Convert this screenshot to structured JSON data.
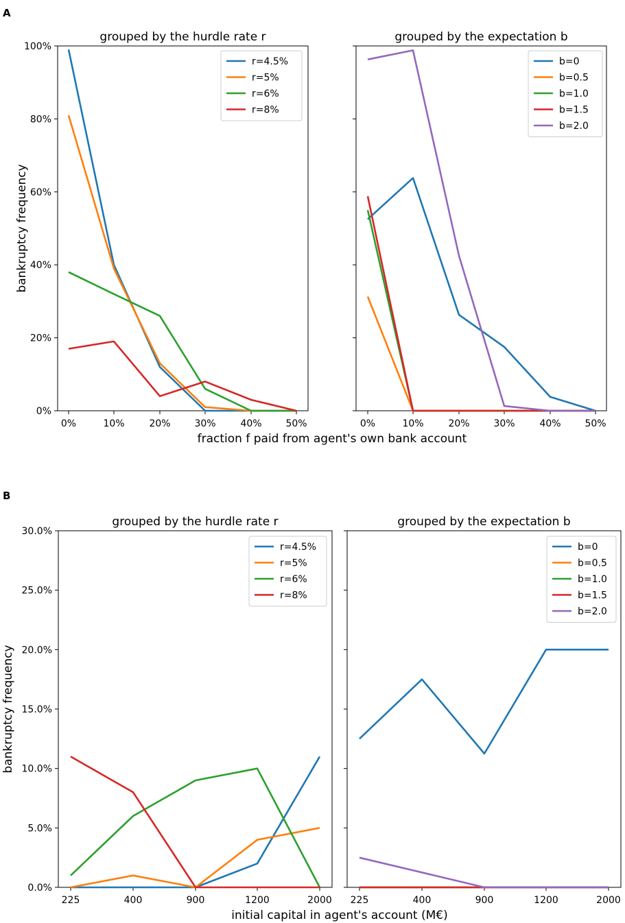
{
  "figure": {
    "panel_a_label": "A",
    "panel_b_label": "B"
  },
  "colors": {
    "blue": "#1f77b4",
    "orange": "#ff7f0e",
    "green": "#2ca02c",
    "red": "#d62728",
    "purple": "#9467bd"
  },
  "chart_data": [
    {
      "id": "A-left",
      "type": "line",
      "title": "grouped by the hurdle rate r",
      "xlabel": "",
      "ylabel": "bankruptcy frequency",
      "categories": [
        "0%",
        "10%",
        "20%",
        "30%",
        "40%",
        "50%"
      ],
      "x": [
        0,
        10,
        20,
        30,
        40,
        50
      ],
      "ylim": [
        0,
        100
      ],
      "yticks": [
        0,
        20,
        40,
        60,
        80,
        100
      ],
      "ytick_labels": [
        "0%",
        "20%",
        "40%",
        "60%",
        "80%",
        "100%"
      ],
      "legend_location": "top-right",
      "series": [
        {
          "name": "r=4.5%",
          "color": "#1f77b4",
          "values": [
            99,
            40,
            12,
            0,
            0,
            0
          ]
        },
        {
          "name": "r=5%",
          "color": "#ff7f0e",
          "values": [
            81,
            39,
            13,
            1,
            0,
            0
          ]
        },
        {
          "name": "r=6%",
          "color": "#2ca02c",
          "values": [
            38,
            32,
            26,
            6,
            0,
            0
          ]
        },
        {
          "name": "r=8%",
          "color": "#d62728",
          "values": [
            17,
            19,
            4,
            8,
            3,
            0
          ]
        }
      ]
    },
    {
      "id": "A-right",
      "type": "line",
      "title": "grouped by the expectation b",
      "xlabel": "",
      "ylabel": "",
      "categories": [
        "0%",
        "10%",
        "20%",
        "30%",
        "40%",
        "50%"
      ],
      "x": [
        0,
        10,
        20,
        30,
        40,
        50
      ],
      "ylim": [
        0,
        100
      ],
      "yticks": [
        0,
        20,
        40,
        60,
        80,
        100
      ],
      "ytick_labels": [
        "",
        "",
        "",
        "",
        "",
        ""
      ],
      "legend_location": "top-right",
      "series": [
        {
          "name": "b=0",
          "color": "#1f77b4",
          "values": [
            52.5,
            63.8,
            26.3,
            17.5,
            3.8,
            0
          ]
        },
        {
          "name": "b=0.5",
          "color": "#ff7f0e",
          "values": [
            31.3,
            0,
            0,
            0,
            0,
            0
          ]
        },
        {
          "name": "b=1.0",
          "color": "#2ca02c",
          "values": [
            55,
            0,
            0,
            0,
            0,
            0
          ]
        },
        {
          "name": "b=1.5",
          "color": "#d62728",
          "values": [
            58.8,
            0,
            0,
            0,
            0,
            0
          ]
        },
        {
          "name": "b=2.0",
          "color": "#9467bd",
          "values": [
            96.3,
            98.8,
            42.5,
            1.3,
            0,
            0
          ]
        }
      ]
    },
    {
      "id": "B-left",
      "type": "line",
      "title": "grouped by the hurdle rate r",
      "xlabel": "",
      "ylabel": "bankruptcy frequency",
      "categories": [
        "225",
        "400",
        "900",
        "1200",
        "2000"
      ],
      "x": [
        225,
        400,
        900,
        1200,
        2000
      ],
      "ylim": [
        0,
        30
      ],
      "yticks": [
        0,
        5,
        10,
        15,
        20,
        25,
        30
      ],
      "ytick_labels": [
        "0.0%",
        "5.0%",
        "10.0%",
        "15.0%",
        "20.0%",
        "25.0%",
        "30.0%"
      ],
      "legend_location": "top-right",
      "series": [
        {
          "name": "r=4.5%",
          "color": "#1f77b4",
          "values": [
            0,
            0,
            0,
            2,
            11
          ]
        },
        {
          "name": "r=5%",
          "color": "#ff7f0e",
          "values": [
            0,
            1,
            0,
            4,
            5
          ]
        },
        {
          "name": "r=6%",
          "color": "#2ca02c",
          "values": [
            1,
            6,
            9,
            10,
            0
          ]
        },
        {
          "name": "r=8%",
          "color": "#d62728",
          "values": [
            11,
            8,
            0,
            0,
            0
          ]
        }
      ]
    },
    {
      "id": "B-right",
      "type": "line",
      "title": "grouped by the expectation b",
      "xlabel": "",
      "ylabel": "",
      "categories": [
        "225",
        "400",
        "900",
        "1200",
        "2000"
      ],
      "x": [
        225,
        400,
        900,
        1200,
        2000
      ],
      "ylim": [
        0,
        30
      ],
      "yticks": [
        0,
        5,
        10,
        15,
        20,
        25,
        30
      ],
      "ytick_labels": [
        "",
        "",
        "",
        "",
        "",
        "",
        ""
      ],
      "legend_location": "top-right",
      "series": [
        {
          "name": "b=0",
          "color": "#1f77b4",
          "values": [
            12.5,
            17.5,
            11.25,
            20,
            20
          ]
        },
        {
          "name": "b=0.5",
          "color": "#ff7f0e",
          "values": [
            0,
            0,
            0,
            0,
            0
          ]
        },
        {
          "name": "b=1.0",
          "color": "#2ca02c",
          "values": [
            0,
            0,
            0,
            0,
            0
          ]
        },
        {
          "name": "b=1.5",
          "color": "#d62728",
          "values": [
            0,
            0,
            0,
            0,
            0
          ]
        },
        {
          "name": "b=2.0",
          "color": "#9467bd",
          "values": [
            2.5,
            1.25,
            0,
            0,
            0
          ]
        }
      ]
    }
  ],
  "shared_xlabels": {
    "A": "fraction f paid from agent's own bank account",
    "B": "initial capital in agent's account (M€)"
  }
}
